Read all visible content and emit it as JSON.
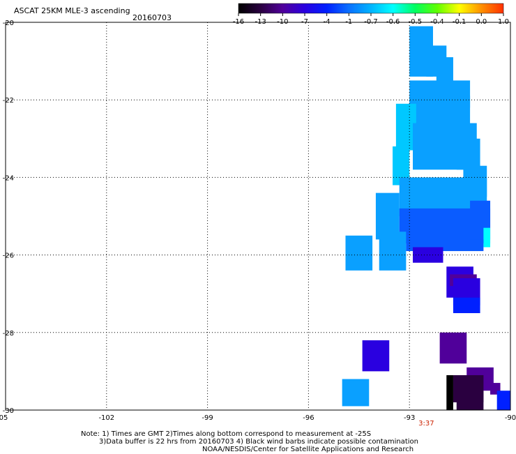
{
  "header": {
    "title": "ASCAT 25KM MLE-3 ascending",
    "date": "20160703"
  },
  "footer": {
    "note_line1": "Note: 1) Times are GMT 2)Times along bottom correspond to measurement at -25S",
    "note_line2": "3)Data buffer is 22 hrs from 20160703 4) Black wind barbs indicate possible contamination",
    "credit": "NOAA/NESDIS/Center for Satellite Applications and Research"
  },
  "chart_data": {
    "type": "heatmap",
    "title": "ASCAT 25KM MLE-3 ascending",
    "xlabel": "",
    "ylabel": "",
    "xlim": [
      -105,
      -90
    ],
    "ylim": [
      -30,
      -20
    ],
    "x_ticks": [
      "-105",
      "-102",
      "-99",
      "-96",
      "-93",
      "-90"
    ],
    "y_ticks": [
      "-20",
      "-22",
      "-24",
      "-26",
      "-28",
      "-30"
    ],
    "grid": true,
    "time_labels": [
      {
        "x": -92.5,
        "label": "3:37",
        "color": "#cc2200"
      }
    ],
    "colorbar": {
      "labels": [
        "-16",
        "-13",
        "-10",
        "-7",
        "-4",
        "-1",
        "-0.7",
        "-0.6",
        "-0.5",
        "-0.4",
        "-0.1",
        "0.0",
        "1.0"
      ],
      "colors": [
        "#000000",
        "#2a0040",
        "#50009a",
        "#2a00e0",
        "#0020ff",
        "#0a70ff",
        "#00b4ff",
        "#00ffff",
        "#00ff60",
        "#60ff00",
        "#ffff00",
        "#ff9000",
        "#ff3000"
      ]
    },
    "cells": [
      {
        "lon": [
          -93.0,
          -92.3
        ],
        "lat": [
          -21.4,
          -20.1
        ],
        "value": -0.9
      },
      {
        "lon": [
          -92.5,
          -91.9
        ],
        "lat": [
          -21.4,
          -20.6
        ],
        "value": -1.0
      },
      {
        "lon": [
          -92.2,
          -91.7
        ],
        "lat": [
          -21.8,
          -20.9
        ],
        "value": -1.1
      },
      {
        "lon": [
          -93.0,
          -91.2
        ],
        "lat": [
          -22.2,
          -21.5
        ],
        "value": -1.0
      },
      {
        "lon": [
          -93.0,
          -91.2
        ],
        "lat": [
          -22.9,
          -21.9
        ],
        "value": -0.9
      },
      {
        "lon": [
          -93.4,
          -92.8
        ],
        "lat": [
          -23.3,
          -22.1
        ],
        "value": -0.8
      },
      {
        "lon": [
          -92.9,
          -91.0
        ],
        "lat": [
          -23.8,
          -22.6
        ],
        "value": -1.0
      },
      {
        "lon": [
          -93.5,
          -93.0
        ],
        "lat": [
          -24.2,
          -23.2
        ],
        "value": -0.8
      },
      {
        "lon": [
          -91.6,
          -90.9
        ],
        "lat": [
          -23.8,
          -23.0
        ],
        "value": -1.2
      },
      {
        "lon": [
          -91.4,
          -90.7
        ],
        "lat": [
          -24.5,
          -23.7
        ],
        "value": -1.3
      },
      {
        "lon": [
          -93.3,
          -90.7
        ],
        "lat": [
          -25.0,
          -24.0
        ],
        "value": -1.2
      },
      {
        "lon": [
          -94.0,
          -93.3
        ],
        "lat": [
          -25.6,
          -24.4
        ],
        "value": -0.9
      },
      {
        "lon": [
          -93.3,
          -90.6
        ],
        "lat": [
          -25.7,
          -24.8
        ],
        "value": -1.5
      },
      {
        "lon": [
          -91.2,
          -90.6
        ],
        "lat": [
          -25.6,
          -24.6
        ],
        "value": -1.8
      },
      {
        "lon": [
          -90.8,
          -90.6
        ],
        "lat": [
          -25.8,
          -25.3
        ],
        "value": -0.6
      },
      {
        "lon": [
          -93.1,
          -90.8
        ],
        "lat": [
          -25.9,
          -25.6
        ],
        "value": -2.5
      },
      {
        "lon": [
          -94.9,
          -94.1
        ],
        "lat": [
          -26.4,
          -25.5
        ],
        "value": -0.9
      },
      {
        "lon": [
          -93.9,
          -93.1
        ],
        "lat": [
          -26.4,
          -25.4
        ],
        "value": -0.9
      },
      {
        "lon": [
          -92.9,
          -92.0
        ],
        "lat": [
          -26.2,
          -25.8
        ],
        "value": -7.0
      },
      {
        "lon": [
          -91.9,
          -91.1
        ],
        "lat": [
          -27.1,
          -26.3
        ],
        "value": -7.0
      },
      {
        "lon": [
          -91.8,
          -91.0
        ],
        "lat": [
          -26.8,
          -26.5
        ],
        "value": -10.0
      },
      {
        "lon": [
          -91.7,
          -90.9
        ],
        "lat": [
          -27.3,
          -26.6
        ],
        "value": -7.0
      },
      {
        "lon": [
          -91.7,
          -90.9
        ],
        "lat": [
          -27.5,
          -27.1
        ],
        "value": -5.0
      },
      {
        "lon": [
          -92.1,
          -91.3
        ],
        "lat": [
          -28.8,
          -28.0
        ],
        "value": -10.0
      },
      {
        "lon": [
          -94.4,
          -93.6
        ],
        "lat": [
          -29.0,
          -28.2
        ],
        "value": -7.0
      },
      {
        "lon": [
          -91.3,
          -90.5
        ],
        "lat": [
          -29.5,
          -28.9
        ],
        "value": -11.0
      },
      {
        "lon": [
          -91.7,
          -90.8
        ],
        "lat": [
          -29.8,
          -29.1
        ],
        "value": -12.0
      },
      {
        "lon": [
          -91.9,
          -91.7
        ],
        "lat": [
          -30.0,
          -29.1
        ],
        "value": -16.0
      },
      {
        "lon": [
          -91.6,
          -90.8
        ],
        "lat": [
          -30.0,
          -29.5
        ],
        "value": -13.0
      },
      {
        "lon": [
          -90.6,
          -90.3
        ],
        "lat": [
          -29.6,
          -29.3
        ],
        "value": -10.0
      },
      {
        "lon": [
          -90.4,
          -90.0
        ],
        "lat": [
          -30.0,
          -29.5
        ],
        "value": -5.0
      },
      {
        "lon": [
          -95.0,
          -94.2
        ],
        "lat": [
          -29.9,
          -29.2
        ],
        "value": -0.9
      }
    ]
  }
}
